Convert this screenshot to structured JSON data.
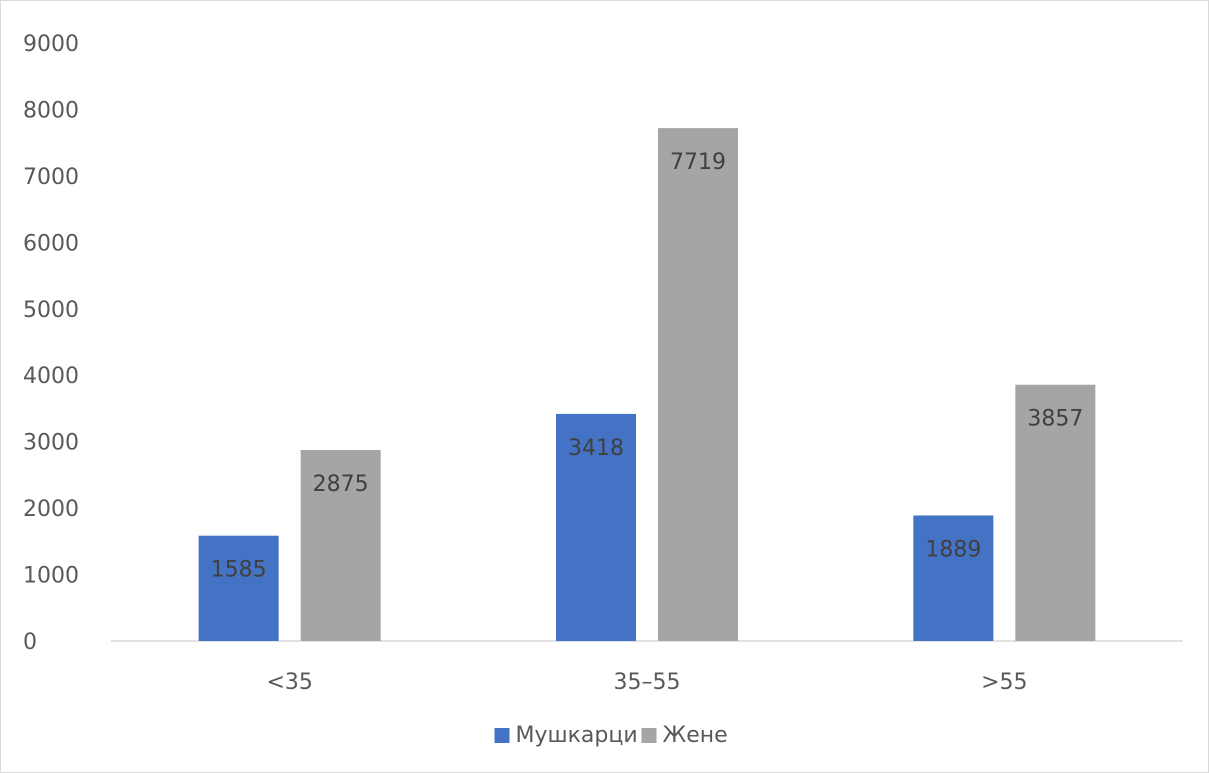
{
  "chart_data": {
    "type": "bar",
    "categories": [
      "<35",
      "35–55",
      ">55"
    ],
    "series": [
      {
        "name": "Мушкарци",
        "values": [
          1585,
          3418,
          1889
        ],
        "color": "#4472c4"
      },
      {
        "name": "Жене",
        "values": [
          2875,
          7719,
          3857
        ],
        "color": "#a5a5a5"
      }
    ],
    "ylim": [
      0,
      9000
    ],
    "yticks": [
      0,
      1000,
      2000,
      3000,
      4000,
      5000,
      6000,
      7000,
      8000,
      9000
    ],
    "title": "",
    "xlabel": "",
    "ylabel": "",
    "grid": false,
    "legend": "bottom",
    "data_labels": "inside-end"
  }
}
